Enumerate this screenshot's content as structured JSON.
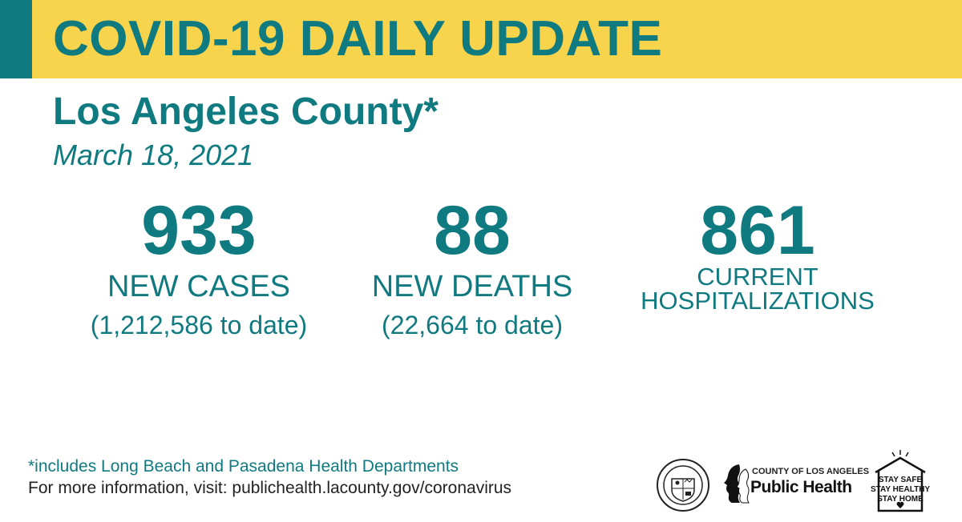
{
  "header": {
    "title": "COVID-19 DAILY UPDATE"
  },
  "county": "Los Angeles County*",
  "date": "March 18, 2021",
  "stats": {
    "cases": {
      "value": "933",
      "label": "NEW CASES",
      "to_date": "(1,212,586 to date)"
    },
    "deaths": {
      "value": "88",
      "label": "NEW DEATHS",
      "to_date": "(22,664 to date)"
    },
    "hospitalizations": {
      "value": "861",
      "label_line1": "CURRENT",
      "label_line2": "HOSPITALIZATIONS"
    }
  },
  "footer": {
    "note": "*includes Long Beach and Pasadena Health Departments",
    "more_info": "For more information, visit: publichealth.lacounty.gov/coronavirus"
  },
  "logos": {
    "seal_icon": "county-seal-icon",
    "public_health": {
      "county": "COUNTY OF LOS ANGELES",
      "name": "Public Health"
    },
    "stay_safe": {
      "line1": "STAY SAFE",
      "line2": "STAY HEALTHY",
      "line3": "STAY HOME"
    }
  },
  "colors": {
    "teal": "#0f7a80",
    "banner": "#f8d44c"
  }
}
